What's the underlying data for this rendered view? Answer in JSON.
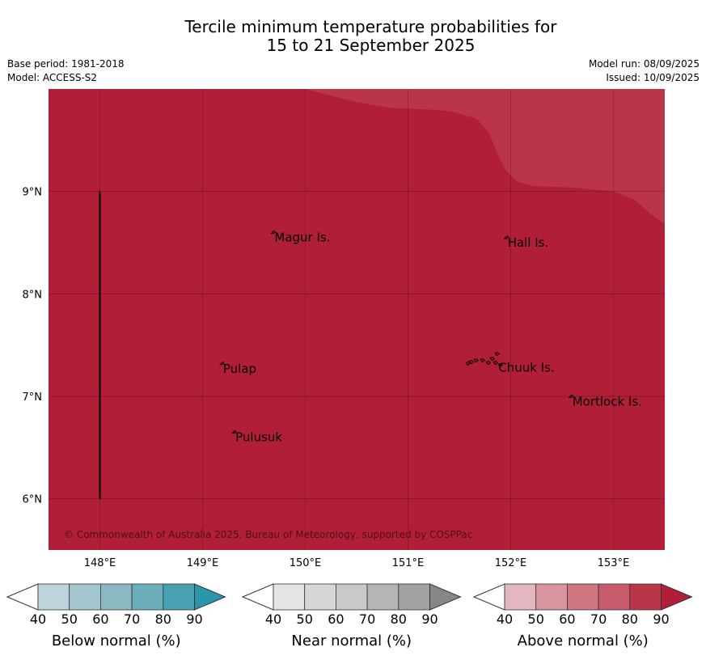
{
  "header": {
    "title_line1": "Tercile minimum temperature probabilities for",
    "title_line2": "15 to 21 September 2025",
    "base_period": "Base period: 1981-2018",
    "model": "Model: ACCESS-S2",
    "model_run": "Model run: 08/09/2025",
    "issued": "Issued: 10/09/2025"
  },
  "map": {
    "lon_range": [
      147.5,
      153.5
    ],
    "lat_range": [
      5.5,
      10.0
    ],
    "lon_ticks": [
      148,
      149,
      150,
      151,
      152,
      153
    ],
    "lat_ticks": [
      6,
      7,
      8,
      9
    ],
    "lon_tick_labels": [
      "148°E",
      "149°E",
      "150°E",
      "151°E",
      "152°E",
      "153°E"
    ],
    "lat_tick_labels": [
      "6°N",
      "7°N",
      "8°N",
      "9°N"
    ],
    "fill_main": "#b11e38",
    "fill_80": "#bb3549",
    "copyright": "© Commonwealth of Australia 2025, Bureau of Meteorology, supported by COSPPac",
    "places": [
      {
        "name": "Magur Is.",
        "lon": 149.7,
        "lat": 8.55
      },
      {
        "name": "Hall Is.",
        "lon": 151.97,
        "lat": 8.5
      },
      {
        "name": "Pulap",
        "lon": 149.2,
        "lat": 7.27
      },
      {
        "name": "Chuuk Is.",
        "lon": 151.88,
        "lat": 7.28
      },
      {
        "name": "Mortlock Is.",
        "lon": 152.6,
        "lat": 6.95
      },
      {
        "name": "Pulusuk",
        "lon": 149.32,
        "lat": 6.6
      }
    ]
  },
  "colorbars": [
    {
      "label": "Below normal (%)",
      "colors": [
        "#bdd4dc",
        "#a4c6ce",
        "#8ab9c4",
        "#6daebb",
        "#47a1b3"
      ],
      "under": "#ffffff",
      "over": "#2a96ab",
      "ticks": [
        "40",
        "50",
        "60",
        "70",
        "80",
        "90"
      ]
    },
    {
      "label": "Near normal (%)",
      "colors": [
        "#e4e4e4",
        "#d6d6d6",
        "#c9c9c9",
        "#b5b5b5",
        "#a2a2a2"
      ],
      "under": "#ffffff",
      "over": "#878787",
      "ticks": [
        "40",
        "50",
        "60",
        "70",
        "80",
        "90"
      ]
    },
    {
      "label": "Above normal (%)",
      "colors": [
        "#e2b7bf",
        "#d9949f",
        "#cf7680",
        "#c75a6b",
        "#bb3549"
      ],
      "under": "#ffffff",
      "over": "#b11e38",
      "ticks": [
        "40",
        "50",
        "60",
        "70",
        "80",
        "90"
      ]
    }
  ]
}
